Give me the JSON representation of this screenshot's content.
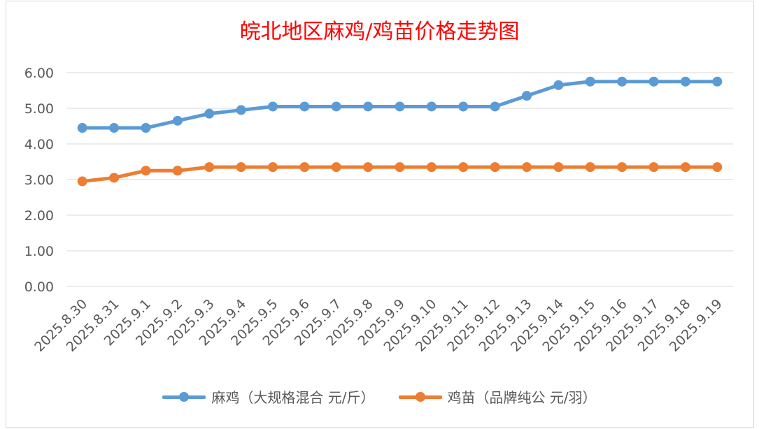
{
  "colors": {
    "title": "#ff0000",
    "series1": "#5b9bd5",
    "series2": "#ed7d31",
    "grid": "#d9d9d9",
    "axis_text": "#595959"
  },
  "chart_data": {
    "type": "line",
    "title": "皖北地区麻鸡/鸡苗价格走势图",
    "xlabel": "",
    "ylabel": "",
    "ylim": [
      0,
      6
    ],
    "yticks": [
      "0.00",
      "1.00",
      "2.00",
      "3.00",
      "4.00",
      "5.00",
      "6.00"
    ],
    "grid": true,
    "legend_position": "bottom",
    "categories": [
      "2025.8.30",
      "2025.8.31",
      "2025.9.1",
      "2025.9.2",
      "2025.9.3",
      "2025.9.4",
      "2025.9.5",
      "2025.9.6",
      "2025.9.7",
      "2025.9.8",
      "2025.9.9",
      "2025.9.10",
      "2025.9.11",
      "2025.9.12",
      "2025.9.13",
      "2025.9.14",
      "2025.9.15",
      "2025.9.16",
      "2025.9.17",
      "2025.9.18",
      "2025.9.19"
    ],
    "series": [
      {
        "name": "麻鸡（大规格混合 元/斤）",
        "values": [
          4.45,
          4.45,
          4.45,
          4.65,
          4.85,
          4.95,
          5.05,
          5.05,
          5.05,
          5.05,
          5.05,
          5.05,
          5.05,
          5.05,
          5.35,
          5.65,
          5.75,
          5.75,
          5.75,
          5.75,
          5.75
        ]
      },
      {
        "name": "鸡苗（品牌纯公 元/羽）",
        "values": [
          2.95,
          3.05,
          3.25,
          3.25,
          3.35,
          3.35,
          3.35,
          3.35,
          3.35,
          3.35,
          3.35,
          3.35,
          3.35,
          3.35,
          3.35,
          3.35,
          3.35,
          3.35,
          3.35,
          3.35,
          3.35
        ]
      }
    ]
  }
}
